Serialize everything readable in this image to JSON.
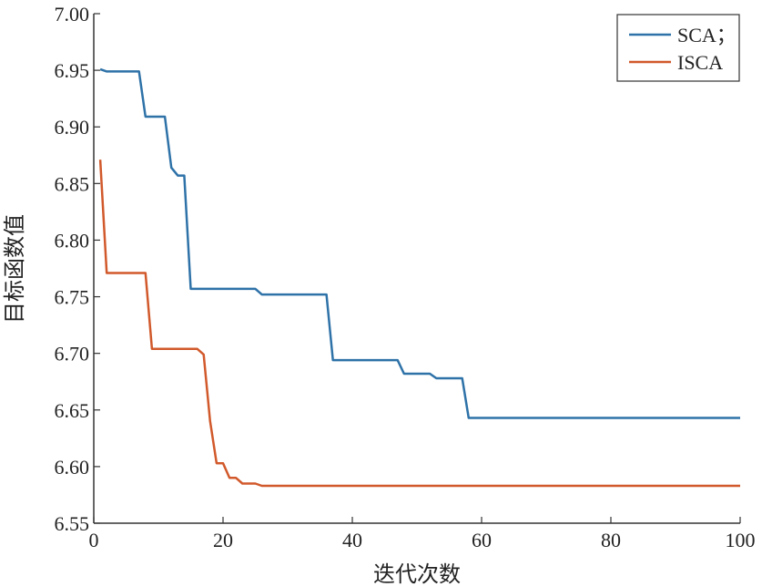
{
  "chart_data": {
    "type": "line",
    "title": "",
    "xlabel": "迭代次数",
    "ylabel": "目标函数值",
    "xlim": [
      0,
      100
    ],
    "ylim": [
      6.55,
      7.0
    ],
    "xticks": [
      "0",
      "20",
      "40",
      "60",
      "80",
      "100"
    ],
    "yticks": [
      "6.55",
      "6.60",
      "6.65",
      "6.70",
      "6.75",
      "6.80",
      "6.85",
      "6.90",
      "6.95",
      "7.00"
    ],
    "grid": false,
    "legend_position": "top-right",
    "series": [
      {
        "name": "SCA；",
        "color": "#2e72a8",
        "points": [
          [
            1,
            6.951
          ],
          [
            2,
            6.949
          ],
          [
            7,
            6.949
          ],
          [
            8,
            6.909
          ],
          [
            11,
            6.909
          ],
          [
            12,
            6.864
          ],
          [
            13,
            6.857
          ],
          [
            14,
            6.857
          ],
          [
            15,
            6.757
          ],
          [
            25,
            6.757
          ],
          [
            26,
            6.752
          ],
          [
            36,
            6.752
          ],
          [
            37,
            6.694
          ],
          [
            47,
            6.694
          ],
          [
            48,
            6.682
          ],
          [
            52,
            6.682
          ],
          [
            53,
            6.678
          ],
          [
            57,
            6.678
          ],
          [
            58,
            6.643
          ],
          [
            100,
            6.643
          ]
        ]
      },
      {
        "name": "ISCA",
        "color": "#d1592b",
        "points": [
          [
            1,
            6.871
          ],
          [
            2,
            6.771
          ],
          [
            8,
            6.771
          ],
          [
            9,
            6.704
          ],
          [
            16,
            6.704
          ],
          [
            17,
            6.699
          ],
          [
            18,
            6.64
          ],
          [
            19,
            6.603
          ],
          [
            20,
            6.603
          ],
          [
            21,
            6.59
          ],
          [
            22,
            6.59
          ],
          [
            23,
            6.585
          ],
          [
            25,
            6.585
          ],
          [
            26,
            6.583
          ],
          [
            100,
            6.583
          ]
        ]
      }
    ]
  }
}
